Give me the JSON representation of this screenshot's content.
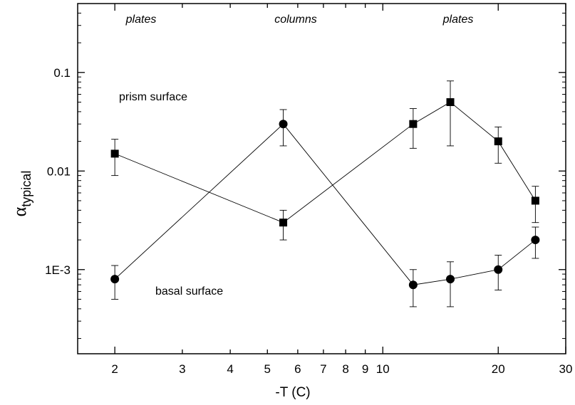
{
  "chart_data": {
    "type": "scatter",
    "title": "",
    "xlabel": "-T  (C)",
    "ylabel_main": "α",
    "ylabel_sub": "typical",
    "x_scale": "log",
    "y_scale": "log",
    "xlim": [
      1.6,
      30
    ],
    "ylim": [
      0.00014,
      0.5
    ],
    "x_ticks": [
      {
        "value": 2,
        "label": "2"
      },
      {
        "value": 3,
        "label": "3"
      },
      {
        "value": 4,
        "label": "4"
      },
      {
        "value": 5,
        "label": "5"
      },
      {
        "value": 6,
        "label": "6"
      },
      {
        "value": 7,
        "label": "7"
      },
      {
        "value": 8,
        "label": "8"
      },
      {
        "value": 9,
        "label": "9"
      },
      {
        "value": 10,
        "label": "10"
      },
      {
        "value": 20,
        "label": "20"
      },
      {
        "value": 30,
        "label": "30"
      }
    ],
    "y_ticks": [
      {
        "value": 0.1,
        "label": "0.1"
      },
      {
        "value": 0.01,
        "label": "0.01"
      },
      {
        "value": 0.001,
        "label": "1E-3"
      }
    ],
    "grid": false,
    "series": [
      {
        "name": "prism surface",
        "marker": "square",
        "points": [
          {
            "x": 2,
            "y": 0.015,
            "ylow": 0.009,
            "yhigh": 0.021
          },
          {
            "x": 5.5,
            "y": 0.003,
            "ylow": 0.002,
            "yhigh": 0.004
          },
          {
            "x": 12,
            "y": 0.03,
            "ylow": 0.017,
            "yhigh": 0.043
          },
          {
            "x": 15,
            "y": 0.05,
            "ylow": 0.018,
            "yhigh": 0.082
          },
          {
            "x": 20,
            "y": 0.02,
            "ylow": 0.012,
            "yhigh": 0.028
          },
          {
            "x": 25,
            "y": 0.005,
            "ylow": 0.003,
            "yhigh": 0.007
          }
        ]
      },
      {
        "name": "basal surface",
        "marker": "circle",
        "points": [
          {
            "x": 2,
            "y": 0.0008,
            "ylow": 0.0005,
            "yhigh": 0.0011
          },
          {
            "x": 5.5,
            "y": 0.03,
            "ylow": 0.018,
            "yhigh": 0.042
          },
          {
            "x": 12,
            "y": 0.0007,
            "ylow": 0.00042,
            "yhigh": 0.001
          },
          {
            "x": 15,
            "y": 0.0008,
            "ylow": 0.00042,
            "yhigh": 0.0012
          },
          {
            "x": 20,
            "y": 0.001,
            "ylow": 0.00062,
            "yhigh": 0.0014
          },
          {
            "x": 25,
            "y": 0.002,
            "ylow": 0.0013,
            "yhigh": 0.0027
          }
        ]
      }
    ],
    "annotations": [
      {
        "text": "plates",
        "style": "italic"
      },
      {
        "text": "columns",
        "style": "italic"
      },
      {
        "text": "plates",
        "style": "italic"
      },
      {
        "text": "prism surface",
        "style": "normal"
      },
      {
        "text": "basal surface",
        "style": "normal"
      }
    ]
  }
}
